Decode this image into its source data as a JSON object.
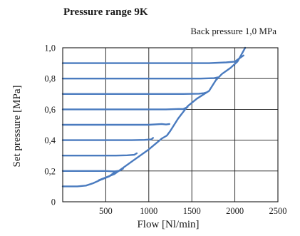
{
  "chart_data": {
    "type": "line",
    "title": "Pressure range 9K",
    "subtitle": "Back pressure 1,0 MPa",
    "xlabel": "Flow [Nl/min]",
    "ylabel": "Set pressure [MPa]",
    "xlim": [
      0,
      2500
    ],
    "ylim": [
      0,
      1.0
    ],
    "x_ticks": [
      500,
      1000,
      1500,
      2000,
      2500
    ],
    "x_tick_labels": [
      "500",
      "1000",
      "1500",
      "2000",
      "2500"
    ],
    "y_ticks": [
      0,
      0.2,
      0.4,
      0.6,
      0.8,
      1.0
    ],
    "y_tick_labels": [
      "0",
      "0,2",
      "0,4",
      "0,6",
      "0,8",
      "1,0"
    ],
    "grid": true,
    "line_color": "#4a7bbf",
    "series": [
      {
        "x": [
          0,
          170,
          270,
          350,
          450,
          540,
          600
        ],
        "y": [
          0.1,
          0.1,
          0.105,
          0.12,
          0.145,
          0.165,
          0.19
        ]
      },
      {
        "x": [
          0,
          500,
          600,
          660,
          700
        ],
        "y": [
          0.2,
          0.2,
          0.197,
          0.202,
          0.215
        ]
      },
      {
        "x": [
          0,
          620,
          750,
          830,
          860
        ],
        "y": [
          0.3,
          0.3,
          0.302,
          0.305,
          0.315
        ]
      },
      {
        "x": [
          0,
          800,
          950,
          1030,
          1050
        ],
        "y": [
          0.4,
          0.4,
          0.402,
          0.405,
          0.415
        ]
      },
      {
        "x": [
          0,
          1000,
          1150,
          1200,
          1240
        ],
        "y": [
          0.5,
          0.5,
          0.505,
          0.502,
          0.505
        ]
      },
      {
        "x": [
          0,
          1200,
          1350,
          1400,
          1450
        ],
        "y": [
          0.6,
          0.6,
          0.603,
          0.602,
          0.615
        ]
      },
      {
        "x": [
          0,
          1400,
          1580,
          1640,
          1670
        ],
        "y": [
          0.7,
          0.7,
          0.702,
          0.705,
          0.71
        ]
      },
      {
        "x": [
          0,
          1600,
          1760,
          1800
        ],
        "y": [
          0.8,
          0.8,
          0.803,
          0.808
        ]
      },
      {
        "x": [
          0,
          1700,
          1900,
          2000,
          2100
        ],
        "y": [
          0.9,
          0.9,
          0.905,
          0.91,
          0.95
        ]
      },
      {
        "x": [
          420,
          600,
          800,
          1000,
          1150,
          1210,
          1250,
          1340,
          1450,
          1560,
          1700,
          1780,
          1850,
          1950,
          2030,
          2070,
          2100,
          2120
        ],
        "y": [
          0.14,
          0.18,
          0.26,
          0.34,
          0.41,
          0.43,
          0.46,
          0.54,
          0.62,
          0.67,
          0.72,
          0.79,
          0.83,
          0.87,
          0.91,
          0.95,
          0.98,
          1.0
        ]
      }
    ]
  }
}
